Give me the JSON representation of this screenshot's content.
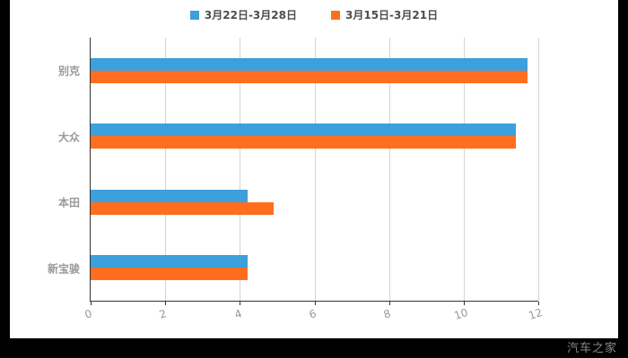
{
  "watermark": "汽车之家",
  "chart_data": {
    "type": "bar",
    "orientation": "horizontal",
    "title": "",
    "categories": [
      "别克",
      "大众",
      "本田",
      "新宝骏"
    ],
    "series": [
      {
        "name": "3月22日-3月28日",
        "color": "#3BA0DC",
        "values": [
          11.7,
          11.4,
          4.2,
          4.2
        ]
      },
      {
        "name": "3月15日-3月21日",
        "color": "#FF6E1F",
        "values": [
          11.7,
          11.4,
          4.9,
          4.2
        ]
      }
    ],
    "xlim": [
      0,
      12
    ],
    "xticks": [
      "0",
      "2",
      "4",
      "6",
      "8",
      "10",
      "12"
    ],
    "grid": true,
    "legend_position": "top",
    "colors": {
      "axis": "#333333",
      "grid": "#d4d4d4",
      "tick_label": "#999999",
      "category_label": "#999999",
      "legend_label": "#4d4d4d",
      "background": "#ffffff",
      "frame": "#000000"
    }
  }
}
